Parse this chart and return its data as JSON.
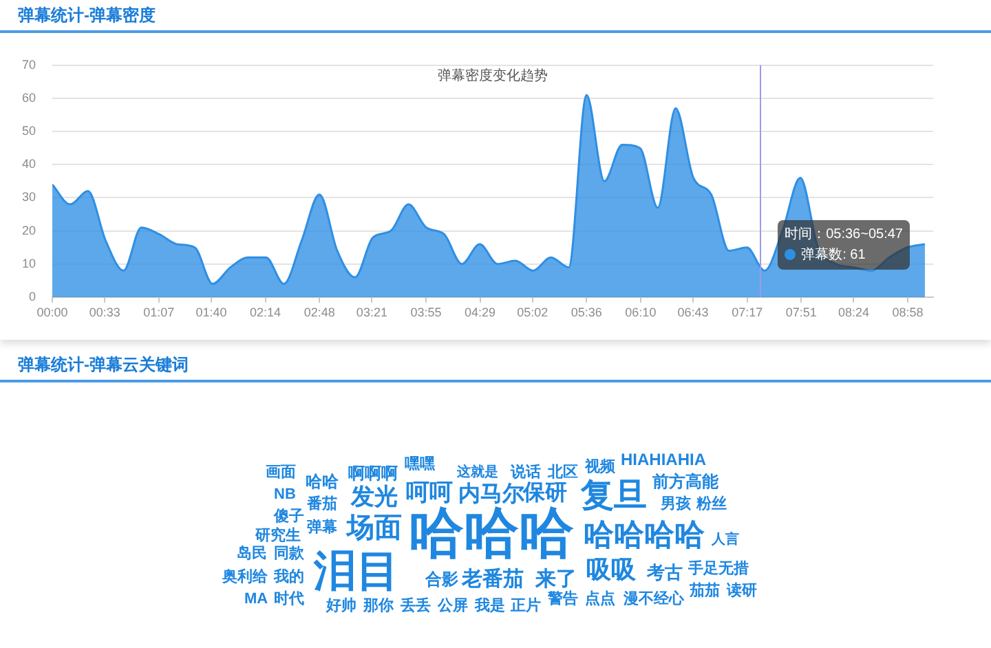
{
  "chart_data": [
    {
      "type": "area",
      "title": "弹幕统计-弹幕密度",
      "subtitle": "弹幕密度变化趋势",
      "x": [
        0,
        11.2,
        22.4,
        33.6,
        44.8,
        56,
        67.2,
        78.4,
        89.6,
        100.8,
        112,
        123.2,
        134.4,
        145.6,
        156.8,
        168,
        179.2,
        190.4,
        201.6,
        212.8,
        224,
        235.2,
        246.4,
        257.6,
        268.8,
        280,
        291.2,
        302.4,
        313.6,
        324.8,
        336,
        347.2,
        358.4,
        369.6,
        380.8,
        392,
        403.2,
        414.4,
        425.6,
        436.8,
        448,
        459.2,
        470.4,
        481.6,
        492.8,
        504,
        515.2,
        526.4,
        537.6,
        548.8
      ],
      "values": [
        34,
        28,
        32,
        17,
        8,
        21,
        19,
        16,
        15,
        4,
        9,
        12,
        12,
        4,
        17,
        31,
        14,
        6,
        18,
        20,
        28,
        21,
        19,
        10,
        16,
        10,
        11,
        8,
        12,
        9,
        61,
        35,
        46,
        45,
        27,
        57,
        36,
        31,
        14,
        15,
        8,
        20,
        36,
        15,
        10,
        9,
        8,
        12,
        15,
        16
      ],
      "color": "#2f8fe4",
      "xlim": [
        0,
        554
      ],
      "xticks": [
        {
          "value": 0,
          "label": "00:00"
        },
        {
          "value": 33,
          "label": "00:33"
        },
        {
          "value": 67,
          "label": "01:07"
        },
        {
          "value": 100,
          "label": "01:40"
        },
        {
          "value": 134,
          "label": "02:14"
        },
        {
          "value": 168,
          "label": "02:48"
        },
        {
          "value": 201,
          "label": "03:21"
        },
        {
          "value": 235,
          "label": "03:55"
        },
        {
          "value": 269,
          "label": "04:29"
        },
        {
          "value": 302,
          "label": "05:02"
        },
        {
          "value": 336,
          "label": "05:36"
        },
        {
          "value": 370,
          "label": "06:10"
        },
        {
          "value": 403,
          "label": "06:43"
        },
        {
          "value": 437,
          "label": "07:17"
        },
        {
          "value": 471,
          "label": "07:51"
        },
        {
          "value": 504,
          "label": "08:24"
        },
        {
          "value": 538,
          "label": "08:58"
        }
      ],
      "ylim": [
        0,
        70
      ],
      "yticks": [
        0,
        10,
        20,
        30,
        40,
        50,
        60,
        70
      ],
      "grid": "y",
      "marker": "none",
      "ref_lines": [
        {
          "axis": "x",
          "value": 445,
          "color": "#9b9be8"
        }
      ],
      "annotations": [
        "时间：05:36~05:47\n弹幕数: 61"
      ]
    },
    {
      "type": "other",
      "title": "弹幕统计-弹幕云关键词",
      "color": "#1f87e0",
      "annotations": [
        "HIAHIAHIA",
        "嘿嘿",
        "视频",
        "画面",
        "啊啊啊",
        "这就是",
        "说话",
        "北区",
        "哈哈",
        "前方高能",
        "NB",
        "发光",
        "呵呵",
        "内马尔",
        "保研",
        "复旦",
        "番茄",
        "男孩",
        "粉丝",
        "傻子",
        "弹幕",
        "场面",
        "哈哈哈",
        "哈哈哈哈",
        "研究生",
        "人言",
        "岛民",
        "同款",
        "吸吸",
        "手足无措",
        "泪目",
        "考古",
        "奥利给",
        "我的",
        "合影",
        "老番茄",
        "来了",
        "茄茄",
        "读研",
        "MA",
        "时代",
        "警告",
        "点点",
        "漫不经心",
        "好帅",
        "那你",
        "丢丢",
        "公屏",
        "我是",
        "正片"
      ]
    }
  ]
}
